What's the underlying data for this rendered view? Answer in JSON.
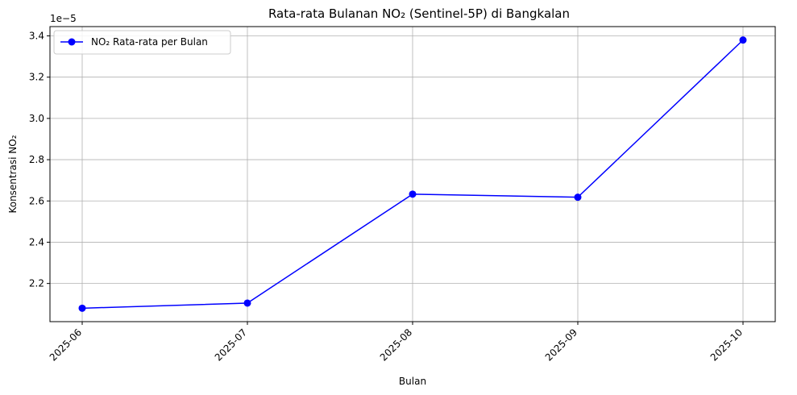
{
  "chart_data": {
    "type": "line",
    "title": "Rata-rata Bulanan NO₂ (Sentinel-5P) di Bangkalan",
    "xlabel": "Bulan",
    "ylabel": "Konsentrasi NO₂",
    "y_offset_text": "1e−5",
    "x": [
      "2025-06",
      "2025-07",
      "2025-08",
      "2025-09",
      "2025-10"
    ],
    "series": [
      {
        "name": "NO₂ Rata-rata per Bulan",
        "color": "#0000ff",
        "marker": "circle",
        "values": [
          2.08,
          2.105,
          2.633,
          2.618,
          3.38
        ]
      }
    ],
    "y_ticks": [
      2.2,
      2.4,
      2.6,
      2.8,
      3.0,
      3.2,
      3.4
    ],
    "y_tick_labels": [
      "2.2",
      "2.4",
      "2.6",
      "2.8",
      "3.0",
      "3.2",
      "3.4"
    ],
    "ylim": [
      2.015,
      3.445
    ],
    "grid": true,
    "legend_position": "upper-left",
    "x_tick_rotation": 45
  }
}
